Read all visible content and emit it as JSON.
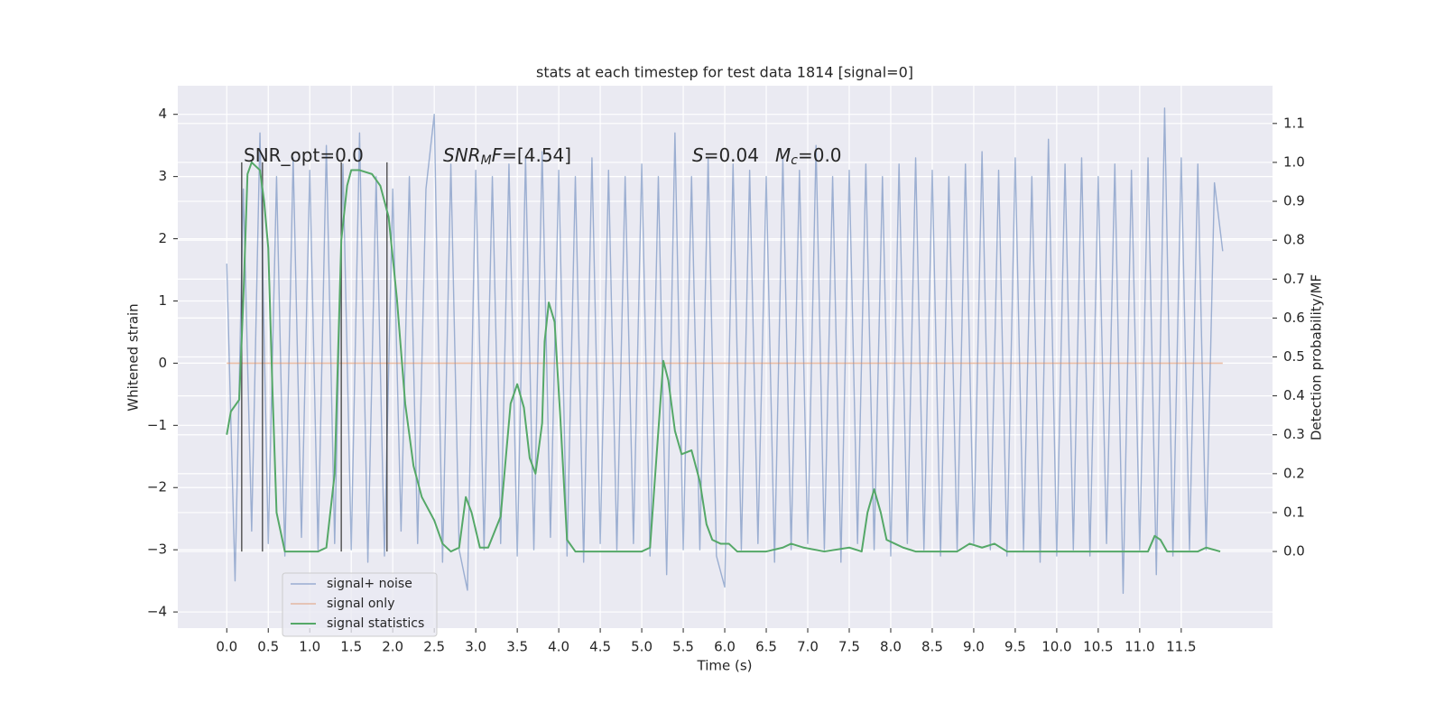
{
  "chart_data": {
    "type": "line",
    "title": "stats at each timestep for test data 1814 [signal=0]",
    "x_label": "Time (s)",
    "y_label": "Whitened strain",
    "y2_label": "Detection probability/MF",
    "xlim": [
      -0.59,
      12.6
    ],
    "ylim": [
      -4.26,
      4.46
    ],
    "y2lim": [
      -0.197,
      1.197
    ],
    "xticks": [
      {
        "value": 0,
        "label": "0.0"
      },
      0.5,
      {
        "value": 1,
        "label": "1.0"
      },
      1.5,
      {
        "value": 2,
        "label": "2.0"
      },
      2.5,
      {
        "value": 3,
        "label": "3.0"
      },
      3.5,
      {
        "value": 4,
        "label": "4.0"
      },
      4.5,
      {
        "value": 5,
        "label": "5.0"
      },
      5.5,
      {
        "value": 6,
        "label": "6.0"
      },
      6.5,
      {
        "value": 7,
        "label": "7.0"
      },
      7.5,
      {
        "value": 8,
        "label": "8.0"
      },
      8.5,
      {
        "value": 9,
        "label": "9.0"
      },
      9.5,
      {
        "value": 10,
        "label": "10.0"
      },
      10.5,
      {
        "value": 11,
        "label": "11.0"
      },
      11.5
    ],
    "yticks": [
      {
        "value": -4,
        "label": "−4"
      },
      {
        "value": -3,
        "label": "−3"
      },
      {
        "value": -2,
        "label": "−2"
      },
      {
        "value": -1,
        "label": "−1"
      },
      0,
      1,
      2,
      3,
      4
    ],
    "y2ticks": [
      {
        "value": 0,
        "label": "0.0"
      },
      0.1,
      0.2,
      0.3,
      0.4,
      0.5,
      0.6,
      0.7,
      0.8,
      0.9,
      {
        "value": 1,
        "label": "1.0"
      },
      1.1
    ],
    "grid": true,
    "legend": "lower left",
    "series": [
      {
        "name": "signal+ noise",
        "color": "#4c72b0",
        "x": [
          0,
          0.1,
          0.2,
          0.3,
          0.4,
          0.5,
          0.6,
          0.7,
          0.8,
          0.9,
          1,
          1.1,
          1.2,
          1.3,
          1.4,
          1.5,
          1.6,
          1.7,
          1.8,
          1.9,
          2,
          2.1,
          2.2,
          2.3,
          2.4,
          2.5,
          2.6,
          2.7,
          2.8,
          2.9,
          3,
          3.1,
          3.2,
          3.3,
          3.4,
          3.5,
          3.6,
          3.7,
          3.8,
          3.9,
          4,
          4.1,
          4.2,
          4.3,
          4.4,
          4.5,
          4.6,
          4.7,
          4.8,
          4.9,
          5,
          5.1,
          5.2,
          5.3,
          5.4,
          5.5,
          5.6,
          5.7,
          5.8,
          5.9,
          6,
          6.1,
          6.2,
          6.3,
          6.4,
          6.5,
          6.6,
          6.7,
          6.8,
          6.9,
          7,
          7.1,
          7.2,
          7.3,
          7.4,
          7.5,
          7.6,
          7.7,
          7.8,
          7.9,
          8,
          8.1,
          8.2,
          8.3,
          8.4,
          8.5,
          8.6,
          8.7,
          8.8,
          8.9,
          9,
          9.1,
          9.2,
          9.3,
          9.4,
          9.5,
          9.6,
          9.7,
          9.8,
          9.9,
          10,
          10.1,
          10.2,
          10.3,
          10.4,
          10.5,
          10.6,
          10.7,
          10.8,
          10.9,
          11,
          11.1,
          11.2,
          11.3,
          11.4,
          11.5,
          11.6,
          11.7,
          11.8,
          11.9,
          12
        ],
        "values": [
          1.6,
          -3.5,
          2.8,
          -2.7,
          3.7,
          -2.9,
          3.0,
          -3.1,
          3.3,
          -2.8,
          3.1,
          -3.0,
          3.5,
          -2.9,
          3.2,
          -3.0,
          3.7,
          -3.2,
          3.0,
          -3.1,
          2.8,
          -2.7,
          3.0,
          -2.9,
          2.8,
          4.0,
          -3.2,
          3.2,
          -3.0,
          -3.65,
          3.1,
          -3.0,
          3.0,
          -2.9,
          3.2,
          -3.1,
          3.3,
          -3.0,
          3.4,
          -2.8,
          3.1,
          -3.1,
          3.0,
          -3.2,
          3.3,
          -2.9,
          3.1,
          -3.0,
          3.0,
          -2.9,
          3.2,
          -3.1,
          3.0,
          -3.4,
          3.7,
          -3.0,
          3.0,
          -3.0,
          3.3,
          -3.1,
          -3.6,
          3.2,
          -3.0,
          3.1,
          -2.9,
          3.0,
          -3.2,
          3.3,
          -3.0,
          3.1,
          -2.9,
          3.5,
          -3.0,
          3.0,
          -3.2,
          3.1,
          -2.9,
          3.2,
          -3.0,
          3.0,
          -3.1,
          3.2,
          -2.9,
          3.3,
          -3.0,
          3.1,
          -3.1,
          3.0,
          -3.0,
          3.2,
          -2.9,
          3.4,
          -3.0,
          3.1,
          -3.1,
          3.3,
          -3.0,
          3.0,
          -3.2,
          3.6,
          -3.1,
          3.2,
          -3.0,
          3.3,
          -3.1,
          3.0,
          -2.9,
          3.2,
          -3.7,
          3.1,
          -3.0,
          3.3,
          -3.4,
          4.1,
          -3.1,
          3.3,
          -3.0,
          3.2,
          -3.0,
          2.9,
          1.8
        ]
      },
      {
        "name": "signal only",
        "color": "#dd8452",
        "x": [
          0,
          12
        ],
        "values": [
          0,
          0
        ]
      },
      {
        "name": "signal statistics",
        "color": "#55a868",
        "axis": "y2",
        "x": [
          0,
          0.05,
          0.15,
          0.2,
          0.25,
          0.3,
          0.4,
          0.45,
          0.5,
          0.55,
          0.6,
          0.7,
          0.9,
          1.1,
          1.2,
          1.3,
          1.38,
          1.45,
          1.5,
          1.6,
          1.75,
          1.85,
          1.95,
          2.05,
          2.15,
          2.25,
          2.35,
          2.5,
          2.6,
          2.7,
          2.8,
          2.88,
          2.95,
          3.05,
          3.15,
          3.3,
          3.42,
          3.5,
          3.58,
          3.65,
          3.72,
          3.8,
          3.83,
          3.88,
          3.95,
          4.02,
          4.1,
          4.2,
          4.5,
          4.8,
          5,
          5.1,
          5.18,
          5.26,
          5.32,
          5.4,
          5.48,
          5.6,
          5.7,
          5.78,
          5.85,
          5.95,
          6.05,
          6.15,
          6.5,
          6.7,
          6.8,
          6.95,
          7.2,
          7.5,
          7.65,
          7.72,
          7.8,
          7.88,
          7.95,
          8.05,
          8.15,
          8.3,
          8.6,
          8.8,
          8.95,
          9.1,
          9.25,
          9.4,
          9.8,
          10.5,
          11,
          11.1,
          11.18,
          11.25,
          11.33,
          11.7,
          11.8,
          11.97
        ],
        "values": [
          0.3,
          0.36,
          0.39,
          0.65,
          0.97,
          1,
          0.98,
          0.9,
          0.78,
          0.42,
          0.1,
          0,
          0,
          0,
          0.01,
          0.2,
          0.8,
          0.94,
          0.98,
          0.98,
          0.97,
          0.94,
          0.86,
          0.65,
          0.38,
          0.22,
          0.14,
          0.08,
          0.02,
          0,
          0.01,
          0.14,
          0.1,
          0.01,
          0.01,
          0.09,
          0.38,
          0.43,
          0.37,
          0.24,
          0.2,
          0.33,
          0.54,
          0.64,
          0.59,
          0.34,
          0.03,
          0,
          0,
          0,
          0,
          0.01,
          0.25,
          0.49,
          0.44,
          0.31,
          0.25,
          0.26,
          0.18,
          0.07,
          0.03,
          0.02,
          0.02,
          0,
          0,
          0.01,
          0.02,
          0.01,
          0,
          0.01,
          0,
          0.1,
          0.16,
          0.1,
          0.03,
          0.02,
          0.01,
          0,
          0,
          0,
          0.02,
          0.01,
          0.02,
          0,
          0,
          0,
          0,
          0,
          0.04,
          0.03,
          0,
          0,
          0.01,
          0
        ]
      }
    ],
    "vlines": {
      "x": [
        0.18,
        0.43,
        1.38,
        1.93
      ],
      "y2": [
        0,
        1
      ],
      "color": "#333333"
    },
    "annotations": [
      {
        "parts": [
          {
            "text": "SNR_opt=0.0"
          }
        ]
      },
      {
        "parts": [
          {
            "text": "SNR",
            "italic": true
          },
          {
            "text": "M",
            "italic": true,
            "sub": true
          },
          {
            "text": "F",
            "italic": true
          },
          {
            "text": "=[4.54]"
          }
        ]
      },
      {
        "parts": [
          {
            "text": "S",
            "italic": true
          },
          {
            "text": "=0.04"
          }
        ]
      },
      {
        "parts": [
          {
            "text": "M",
            "italic": true
          },
          {
            "text": "c",
            "italic": true,
            "sub": true
          },
          {
            "text": "=0.0"
          }
        ]
      }
    ]
  }
}
